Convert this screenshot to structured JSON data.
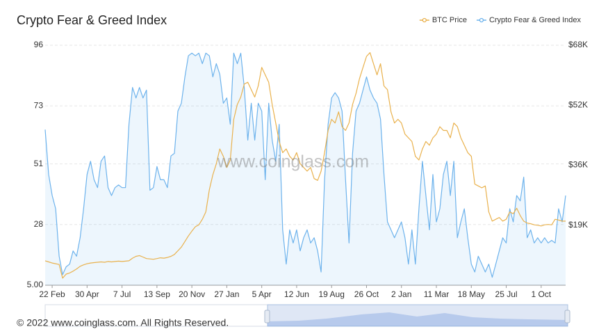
{
  "chart_data": {
    "type": "line",
    "title": "Crypto Fear & Greed Index",
    "watermark": "www.coinglass.com",
    "footer": "© 2022 www.coinglass.com. All Rights Reserved.",
    "categories": [
      null,
      null,
      "22 Feb",
      null,
      null,
      null,
      null,
      null,
      null,
      null,
      null,
      null,
      "30 Apr",
      null,
      null,
      null,
      null,
      null,
      null,
      null,
      null,
      null,
      "7 Jul",
      null,
      null,
      null,
      null,
      null,
      null,
      null,
      null,
      null,
      "13 Sep",
      null,
      null,
      null,
      null,
      null,
      null,
      null,
      null,
      null,
      "20 Nov",
      null,
      null,
      null,
      null,
      null,
      null,
      null,
      null,
      null,
      "27 Jan",
      null,
      null,
      null,
      null,
      null,
      null,
      null,
      null,
      null,
      "5 Apr",
      null,
      null,
      null,
      null,
      null,
      null,
      null,
      null,
      null,
      "12 Jun",
      null,
      null,
      null,
      null,
      null,
      null,
      null,
      null,
      null,
      "19 Aug",
      null,
      null,
      null,
      null,
      null,
      null,
      null,
      null,
      null,
      "26 Oct",
      null,
      null,
      null,
      null,
      null,
      null,
      null,
      null,
      null,
      "2 Jan",
      null,
      null,
      null,
      null,
      null,
      null,
      null,
      null,
      null,
      "11 Mar",
      null,
      null,
      null,
      null,
      null,
      null,
      null,
      null,
      null,
      "18 May",
      null,
      null,
      null,
      null,
      null,
      null,
      null,
      null,
      null,
      "25 Jul",
      null,
      null,
      null,
      null,
      null,
      null,
      null,
      null,
      null,
      "1 Oct",
      null,
      null,
      null,
      null,
      null,
      null,
      null
    ],
    "series": [
      {
        "name": "BTC Price",
        "color": "#e9b14c",
        "axis": "y2",
        "values": [
          9800,
          9500,
          9200,
          9000,
          8800,
          5100,
          6200,
          6500,
          7000,
          7600,
          8300,
          8700,
          9000,
          9200,
          9300,
          9400,
          9500,
          9400,
          9600,
          9500,
          9600,
          9700,
          9600,
          9700,
          9800,
          10500,
          11000,
          11200,
          10800,
          10400,
          10300,
          10200,
          10400,
          10600,
          10500,
          10700,
          11000,
          11500,
          12500,
          13500,
          15000,
          16500,
          17800,
          19000,
          19500,
          21000,
          23000,
          29000,
          33000,
          36000,
          40000,
          38000,
          35000,
          37000,
          48000,
          52000,
          54000,
          57500,
          58000,
          56000,
          54000,
          57000,
          62000,
          60000,
          58000,
          52000,
          47000,
          42000,
          39000,
          40000,
          38000,
          37000,
          39000,
          36000,
          35000,
          34000,
          35000,
          32000,
          31500,
          34000,
          39000,
          45000,
          48000,
          47000,
          50000,
          46000,
          45000,
          47000,
          52000,
          55000,
          59000,
          62000,
          65000,
          66000,
          63000,
          60000,
          63000,
          57000,
          56000,
          50000,
          47000,
          48000,
          47000,
          44000,
          43000,
          42000,
          38000,
          37000,
          40000,
          42000,
          41000,
          43000,
          44000,
          46000,
          45000,
          45000,
          43000,
          47000,
          46000,
          43000,
          41000,
          39000,
          38000,
          30500,
          30000,
          29500,
          30000,
          23000,
          20500,
          21000,
          21500,
          20500,
          21000,
          23000,
          22500,
          24000,
          22000,
          20500,
          20000,
          19800,
          19500,
          19400,
          19200,
          19500,
          19600,
          19500,
          21000,
          20800,
          20500,
          20500
        ]
      },
      {
        "name": "Crypto Fear & Greed Index",
        "color": "#6cb2ec",
        "area": true,
        "values": [
          64,
          47,
          39,
          34,
          16,
          9,
          12,
          13,
          18,
          16,
          23,
          34,
          47,
          52,
          45,
          42,
          52,
          54,
          42,
          39,
          42,
          43,
          42,
          42,
          66,
          80,
          76,
          80,
          76,
          79,
          41,
          42,
          50,
          45,
          45,
          42,
          54,
          55,
          71,
          74,
          84,
          92,
          93,
          92,
          93,
          89,
          93,
          92,
          84,
          89,
          85,
          74,
          76,
          66,
          93,
          89,
          93,
          80,
          60,
          74,
          60,
          74,
          71,
          45,
          74,
          60,
          52,
          66,
          26,
          13,
          26,
          21,
          26,
          18,
          23,
          26,
          21,
          23,
          18,
          10,
          45,
          66,
          76,
          78,
          76,
          71,
          45,
          21,
          55,
          71,
          74,
          79,
          84,
          79,
          76,
          74,
          68,
          47,
          29,
          26,
          23,
          26,
          29,
          23,
          13,
          26,
          13,
          34,
          52,
          39,
          26,
          47,
          29,
          34,
          47,
          52,
          39,
          52,
          23,
          29,
          34,
          23,
          13,
          10,
          16,
          13,
          10,
          13,
          8,
          13,
          18,
          23,
          21,
          34,
          29,
          39,
          37,
          46,
          23,
          26,
          21,
          23,
          21,
          23,
          21,
          22,
          21,
          34,
          29,
          39
        ]
      }
    ],
    "ylim": [
      5,
      96
    ],
    "yticks": [
      {
        "value": 5,
        "label": "5.00"
      },
      28,
      51,
      73,
      96
    ],
    "y2lim": [
      3200,
      68000
    ],
    "y2ticks": [
      {
        "value": 19400,
        "label": "$19K"
      },
      {
        "value": 35600,
        "label": "$36K"
      },
      {
        "value": 51800,
        "label": "$52K"
      },
      {
        "value": 68000,
        "label": "$68K"
      }
    ],
    "grid": true,
    "legend": "top-right"
  }
}
